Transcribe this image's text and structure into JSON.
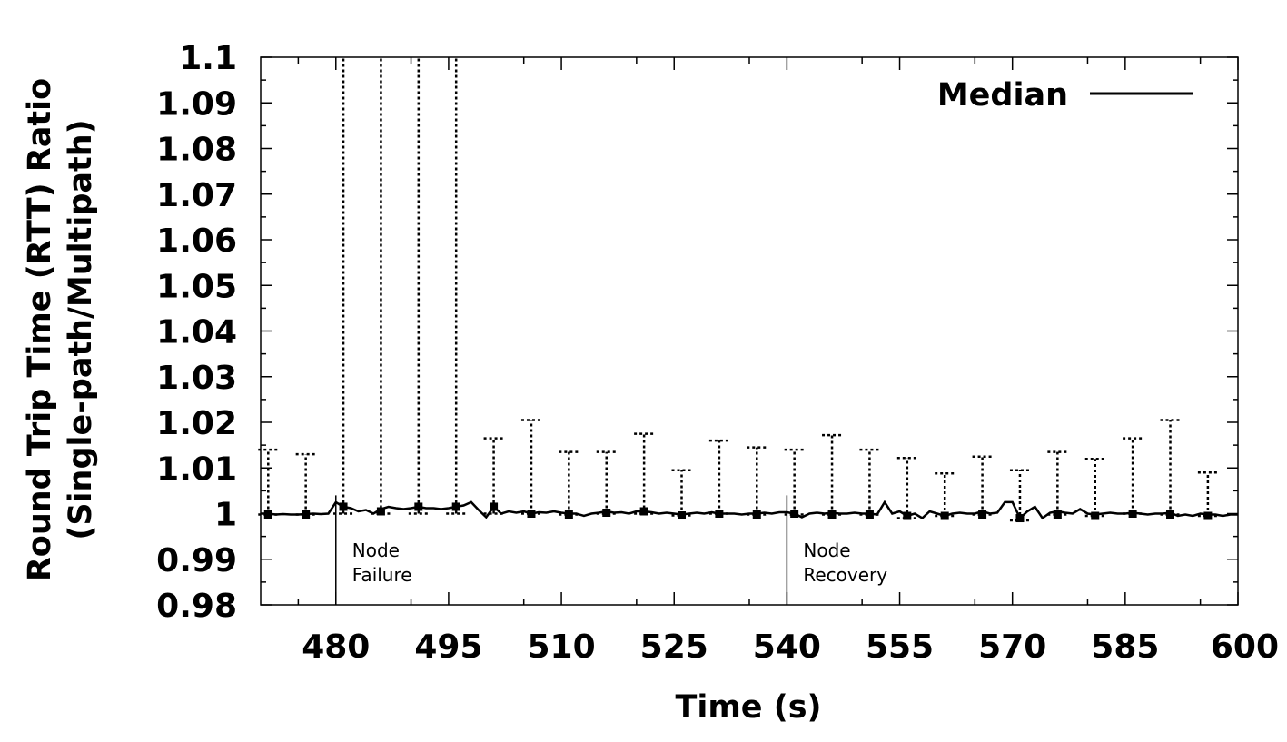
{
  "chart_data": {
    "type": "line",
    "title": "",
    "xlabel": "Time (s)",
    "ylabel_lines": [
      "Round Trip Time (RTT) Ratio",
      "(Single-path/Multipath)"
    ],
    "xlim": [
      470,
      600
    ],
    "ylim": [
      0.98,
      1.1
    ],
    "x_ticks": [
      {
        "value": 480,
        "label": "480"
      },
      {
        "value": 495,
        "label": "495"
      },
      {
        "value": 510,
        "label": "510"
      },
      {
        "value": 525,
        "label": "525"
      },
      {
        "value": 540,
        "label": "540"
      },
      {
        "value": 555,
        "label": "555"
      },
      {
        "value": 570,
        "label": "570"
      },
      {
        "value": 585,
        "label": "585"
      },
      {
        "value": 600,
        "label": "600"
      }
    ],
    "y_ticks": [
      {
        "value": 0.98,
        "label": "0.98"
      },
      {
        "value": 0.99,
        "label": "0.99"
      },
      {
        "value": 1.0,
        "label": "1"
      },
      {
        "value": 1.01,
        "label": "1.01"
      },
      {
        "value": 1.02,
        "label": "1.02"
      },
      {
        "value": 1.03,
        "label": "1.03"
      },
      {
        "value": 1.04,
        "label": "1.04"
      },
      {
        "value": 1.05,
        "label": "1.05"
      },
      {
        "value": 1.06,
        "label": "1.06"
      },
      {
        "value": 1.07,
        "label": "1.07"
      },
      {
        "value": 1.08,
        "label": "1.08"
      },
      {
        "value": 1.09,
        "label": "1.09"
      },
      {
        "value": 1.1,
        "label": "1.1"
      }
    ],
    "legend": {
      "position": "top-right",
      "entries": [
        {
          "label": "Median"
        }
      ]
    },
    "series": [
      {
        "name": "Median",
        "x": [
          470,
          471,
          472,
          473,
          474,
          475,
          476,
          477,
          478,
          479,
          480,
          481,
          482,
          483,
          484,
          485,
          486,
          487,
          488,
          489,
          490,
          491,
          492,
          493,
          494,
          495,
          496,
          497,
          498,
          499,
          500,
          501,
          502,
          503,
          504,
          505,
          506,
          507,
          508,
          509,
          510,
          511,
          512,
          513,
          514,
          515,
          516,
          517,
          518,
          519,
          520,
          521,
          522,
          523,
          524,
          525,
          526,
          527,
          528,
          529,
          530,
          531,
          532,
          533,
          534,
          535,
          536,
          537,
          538,
          539,
          540,
          541,
          542,
          543,
          544,
          545,
          546,
          547,
          548,
          549,
          550,
          551,
          552,
          553,
          554,
          555,
          556,
          557,
          558,
          559,
          560,
          561,
          562,
          563,
          564,
          565,
          566,
          567,
          568,
          569,
          570,
          571,
          572,
          573,
          574,
          575,
          576,
          577,
          578,
          579,
          580,
          581,
          582,
          583,
          584,
          585,
          586,
          587,
          588,
          589,
          590,
          591,
          592,
          593,
          594,
          595,
          596,
          597,
          598,
          599,
          600
        ],
        "values": [
          1.0,
          1.0,
          0.9998,
          0.9999,
          0.9998,
          0.9998,
          0.9999,
          1.0,
          0.9999,
          1.0,
          1.0025,
          1.0015,
          1.0012,
          1.0005,
          1.0008,
          1.0,
          1.001,
          1.0015,
          1.0012,
          1.001,
          1.0012,
          1.0015,
          1.0012,
          1.0012,
          1.001,
          1.0012,
          1.0015,
          1.0018,
          1.0025,
          1.0008,
          0.9992,
          1.0015,
          1.0,
          1.0005,
          1.0002,
          1.0005,
          1.0,
          1.0003,
          1.0002,
          1.0005,
          1.0002,
          1.0,
          1.0,
          0.9995,
          1.0,
          1.0002,
          1.0005,
          1.0002,
          1.0003,
          1.0,
          1.0005,
          1.0005,
          1.0003,
          1.0,
          1.0002,
          1.0,
          0.9998,
          1.0,
          1.0002,
          1.0,
          1.0003,
          1.0,
          1.0,
          1.0,
          0.9998,
          1.0,
          1.0,
          1.0002,
          1.0,
          1.0003,
          1.0003,
          1.0,
          0.9992,
          1.0,
          1.0002,
          1.0,
          1.0002,
          1.0,
          1.0,
          1.0002,
          1.0,
          1.0,
          0.9998,
          1.0025,
          1.0,
          1.0005,
          0.9995,
          1.0,
          0.999,
          1.0005,
          1.0,
          0.9995,
          1.0,
          1.0002,
          1.0,
          1.0,
          1.0005,
          1.0,
          1.0002,
          1.0025,
          1.0025,
          0.999,
          1.0005,
          1.0015,
          0.999,
          1.0002,
          1.0005,
          1.0002,
          1.0,
          1.001,
          1.0,
          0.9998,
          1.0,
          1.0002,
          1.0,
          1.0,
          1.0002,
          1.0,
          0.9998,
          1.0,
          1.0,
          1.0002,
          0.9995,
          0.9998,
          0.9995,
          1.0,
          0.9998,
          0.9998,
          0.9995,
          0.9998,
          0.9998
        ]
      }
    ],
    "error_bars": [
      {
        "x": 471,
        "median": 0.9998,
        "low": 0.9998,
        "high": 1.014
      },
      {
        "x": 476,
        "median": 0.9998,
        "low": 0.9998,
        "high": 1.013
      },
      {
        "x": 481,
        "median": 1.0015,
        "low": 1.0,
        "high": 1.1
      },
      {
        "x": 486,
        "median": 1.0005,
        "low": 1.0,
        "high": 1.1
      },
      {
        "x": 491,
        "median": 1.0015,
        "low": 1.0,
        "high": 1.1
      },
      {
        "x": 496,
        "median": 1.0015,
        "low": 1.0,
        "high": 1.1
      },
      {
        "x": 501,
        "median": 1.0015,
        "low": 1.0,
        "high": 1.0165
      },
      {
        "x": 506,
        "median": 1.0,
        "low": 1.0,
        "high": 1.0205
      },
      {
        "x": 511,
        "median": 0.9998,
        "low": 0.9998,
        "high": 1.0135
      },
      {
        "x": 516,
        "median": 1.0002,
        "low": 1.0,
        "high": 1.0135
      },
      {
        "x": 521,
        "median": 1.0005,
        "low": 1.0,
        "high": 1.0175
      },
      {
        "x": 526,
        "median": 0.9996,
        "low": 0.9996,
        "high": 1.0095
      },
      {
        "x": 531,
        "median": 1.0,
        "low": 1.0,
        "high": 1.016
      },
      {
        "x": 536,
        "median": 0.9998,
        "low": 0.9998,
        "high": 1.0145
      },
      {
        "x": 541,
        "median": 1.0,
        "low": 0.9998,
        "high": 1.014
      },
      {
        "x": 546,
        "median": 0.9998,
        "low": 0.9998,
        "high": 1.0172
      },
      {
        "x": 551,
        "median": 0.9998,
        "low": 0.9998,
        "high": 1.014
      },
      {
        "x": 556,
        "median": 0.9995,
        "low": 0.999,
        "high": 1.0122
      },
      {
        "x": 561,
        "median": 0.9995,
        "low": 0.9995,
        "high": 1.0088
      },
      {
        "x": 566,
        "median": 0.9998,
        "low": 0.9998,
        "high": 1.0125
      },
      {
        "x": 571,
        "median": 0.999,
        "low": 0.9985,
        "high": 1.0095
      },
      {
        "x": 576,
        "median": 0.9998,
        "low": 0.9998,
        "high": 1.0135
      },
      {
        "x": 581,
        "median": 0.9995,
        "low": 0.9995,
        "high": 1.012
      },
      {
        "x": 586,
        "median": 1.0,
        "low": 1.0,
        "high": 1.0165
      },
      {
        "x": 591,
        "median": 0.9998,
        "low": 0.9998,
        "high": 1.0205
      },
      {
        "x": 596,
        "median": 0.9995,
        "low": 0.9995,
        "high": 1.009
      }
    ],
    "annotations": [
      {
        "x": 480,
        "y_top": 1.004,
        "lines": [
          "Node",
          "Failure"
        ]
      },
      {
        "x": 540,
        "y_top": 1.004,
        "lines": [
          "Node",
          "Recovery"
        ]
      }
    ],
    "grid": false
  }
}
